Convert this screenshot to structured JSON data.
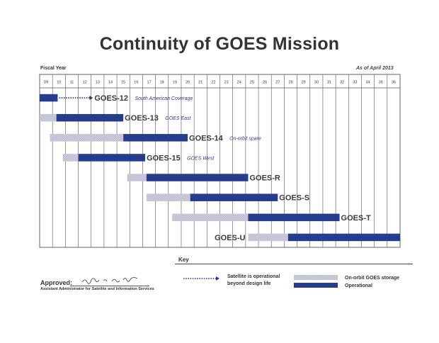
{
  "page": {
    "title": "Continuity of GOES Mission",
    "fiscal_year_label": "Fiscal Year",
    "as_of": "As of April 2013"
  },
  "colors": {
    "operational": "#263c8c",
    "storage": "#c7c7d9",
    "grid": "#555555",
    "note": "#2e3a8c"
  },
  "chart_data": {
    "type": "gantt",
    "title": "Continuity of GOES Mission",
    "x_label": "Fiscal Year",
    "years": [
      "09",
      "10",
      "11",
      "12",
      "13",
      "14",
      "15",
      "16",
      "17",
      "18",
      "19",
      "20",
      "21",
      "22",
      "23",
      "24",
      "25",
      "26",
      "27",
      "28",
      "29",
      "30",
      "31",
      "32",
      "33",
      "34",
      "35",
      "36"
    ],
    "xlim": [
      2009,
      2037
    ],
    "missions": [
      {
        "name": "GOES-12",
        "note": "South American Coverage",
        "storage": [],
        "operational": [
          2009,
          2010.4
        ],
        "extended": [
          2010.4,
          2013.2
        ]
      },
      {
        "name": "GOES-13",
        "note": "GOES East",
        "storage": [
          2009,
          2010.3
        ],
        "operational": [
          2010.3,
          2015.5
        ],
        "extended": null
      },
      {
        "name": "GOES-14",
        "note": "On-orbit spare",
        "storage": [
          2009.8,
          2015.5
        ],
        "operational": [
          2015.5,
          2020.5
        ],
        "extended": null
      },
      {
        "name": "GOES-15",
        "note": "GOES West",
        "storage": [
          2010.8,
          2012.0
        ],
        "operational": [
          2012.0,
          2017.2
        ],
        "extended": null
      },
      {
        "name": "GOES-R",
        "note": "",
        "storage": [
          2015.8,
          2017.3
        ],
        "operational": [
          2017.3,
          2025.2
        ],
        "extended": null
      },
      {
        "name": "GOES-S",
        "note": "",
        "storage": [
          2017.3,
          2020.7
        ],
        "operational": [
          2020.7,
          2027.5
        ],
        "extended": null
      },
      {
        "name": "GOES-T",
        "note": "",
        "storage": [
          2019.3,
          2025.2
        ],
        "operational": [
          2025.2,
          2032.3
        ],
        "extended": null
      },
      {
        "name": "GOES-U",
        "note": "",
        "storage": [
          2025.2,
          2028.3
        ],
        "operational": [
          2028.3,
          2037
        ],
        "extended": null
      }
    ]
  },
  "key": {
    "title": "Key",
    "extended_label_1": "Satellite is operational",
    "extended_label_2": "beyond design life",
    "storage_label": "On-orbit GOES storage",
    "operational_label": "Operational"
  },
  "approval": {
    "label": "Approved:",
    "signature": "Mary E. Kicza",
    "title": "Assistant Administrator for Satellite and Information Services"
  }
}
